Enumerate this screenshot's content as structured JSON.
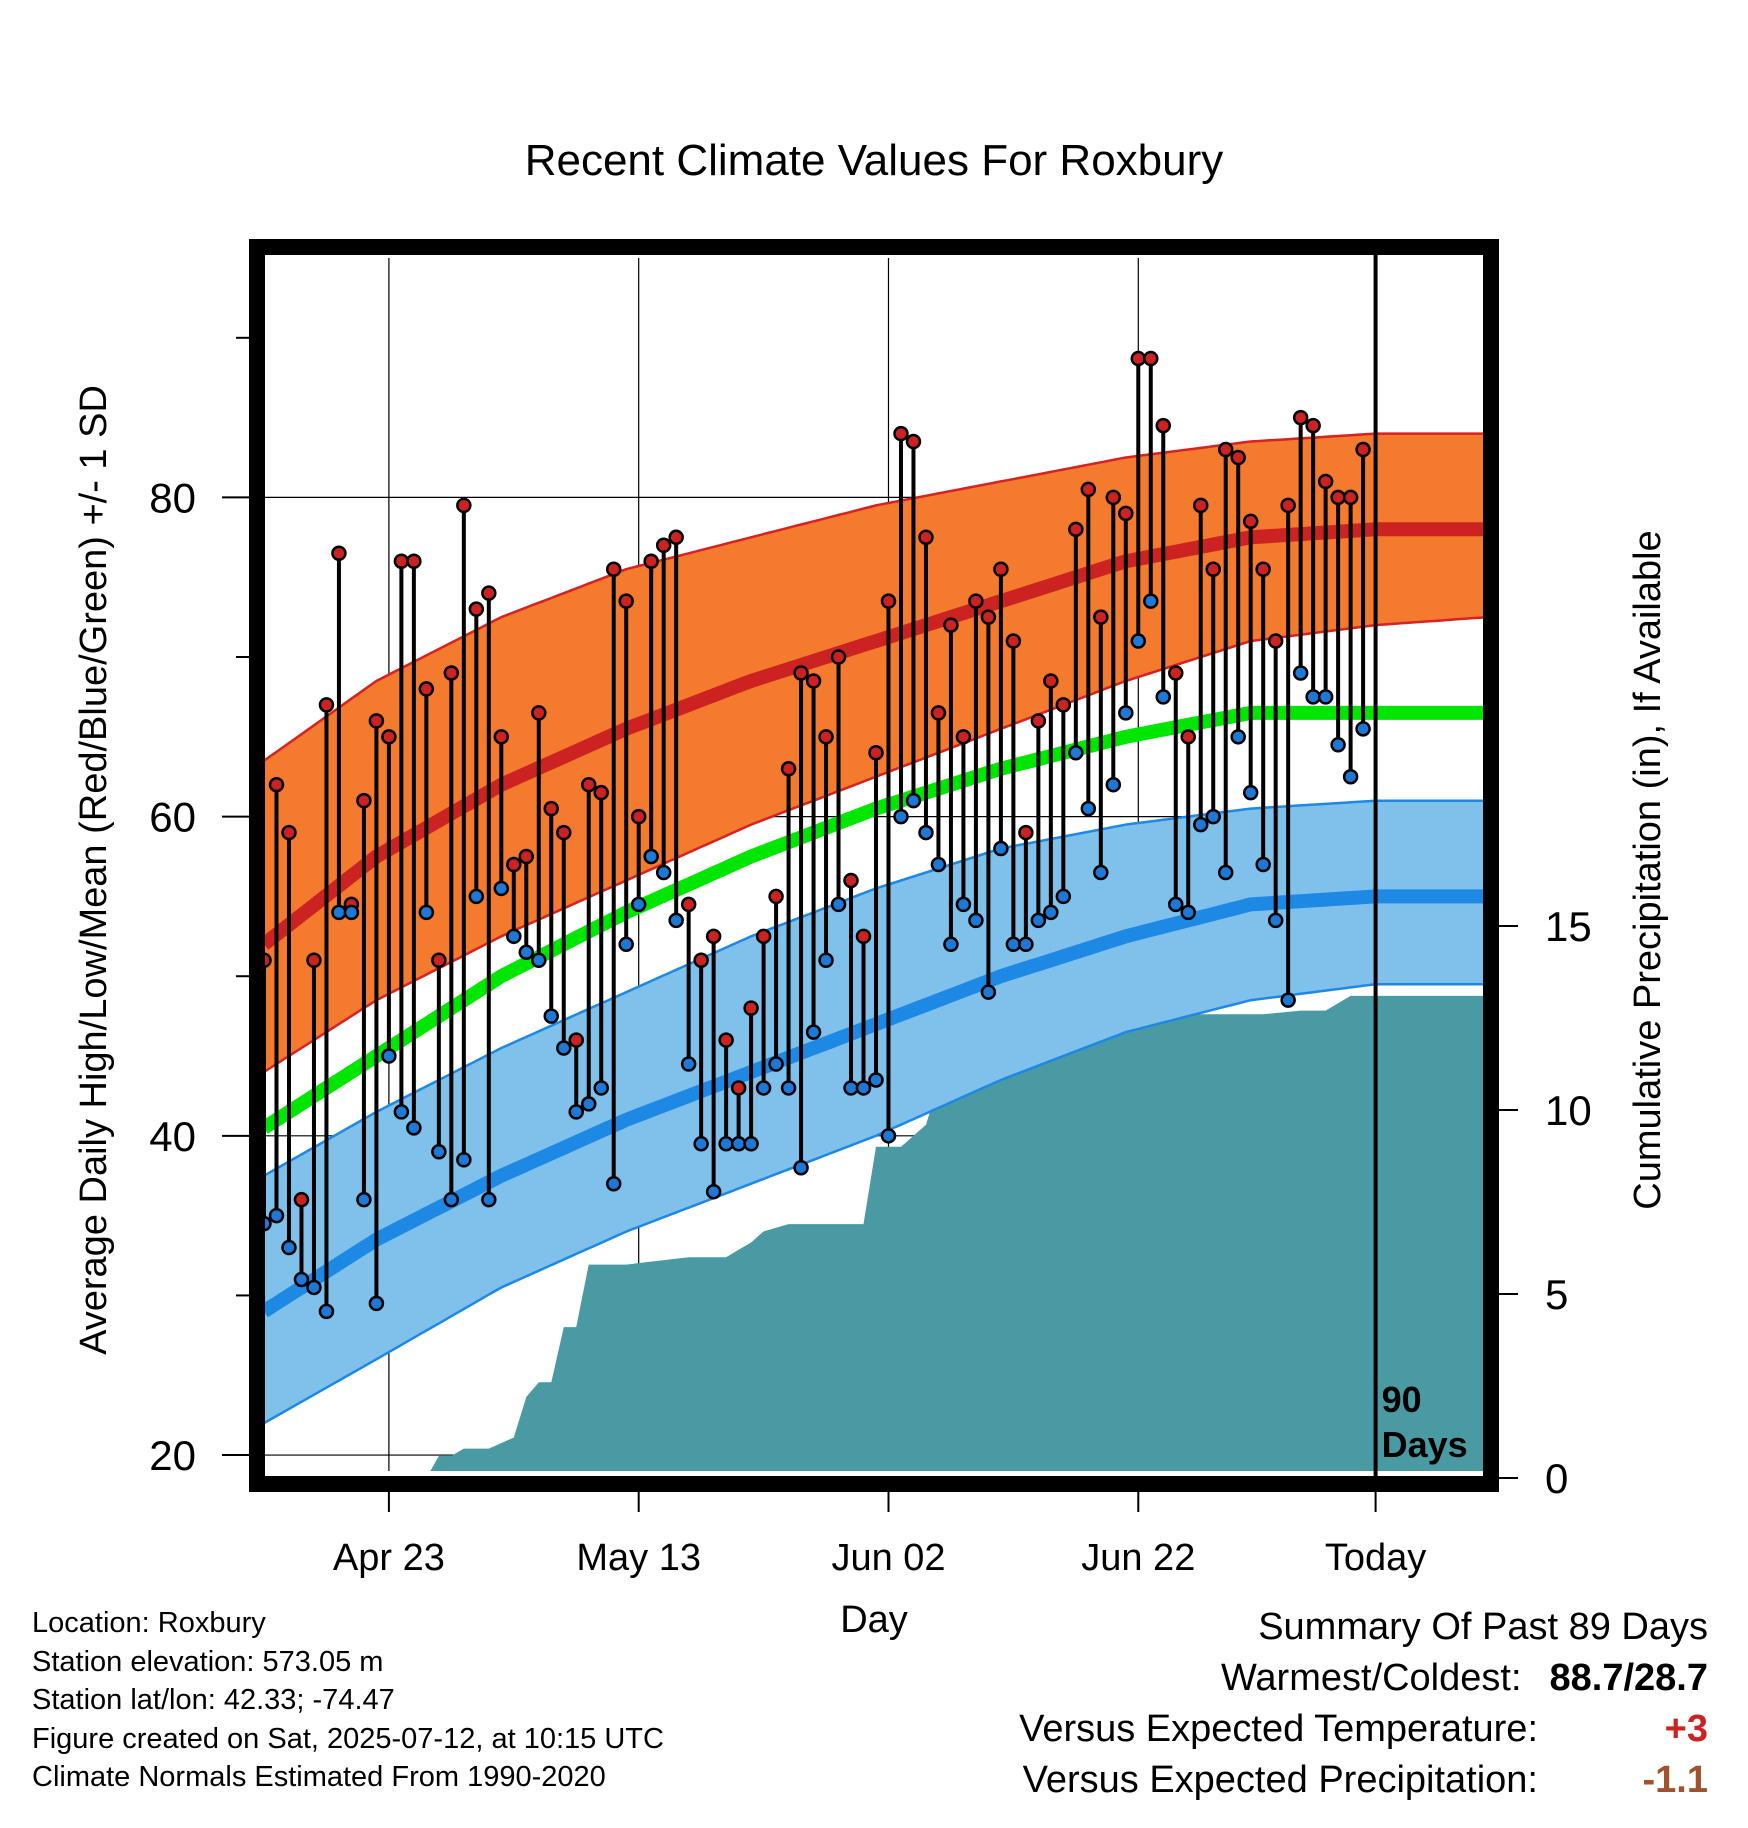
{
  "chart_data": {
    "type": "line",
    "title": "Recent Climate Values For Roxbury",
    "xlabel": "Day",
    "ylabel": "Average Daily High/Low/Mean (Red/Blue/Green) +/- 1 SD",
    "y2label": "Cumulative Precipitation (in), If Available",
    "ylim": [
      19,
      95
    ],
    "y2lim": [
      0,
      25
    ],
    "xlim": [
      -89,
      9
    ],
    "y_ticks": [
      "20",
      "40",
      "60",
      "80"
    ],
    "y2_ticks": [
      "0",
      "5",
      "10",
      "15"
    ],
    "x_ticks": [
      {
        "day": -79,
        "label": "Apr 23"
      },
      {
        "day": -59,
        "label": "May 13"
      },
      {
        "day": -39,
        "label": "Jun 02"
      },
      {
        "day": -19,
        "label": "Jun 22"
      },
      {
        "day": 0,
        "label": "Today"
      }
    ],
    "today_marker": "90\nDays",
    "grid": true,
    "colors": {
      "high_band": "#f47a2e",
      "high_edge": "#d62222",
      "high_mean": "#cc2222",
      "low_band": "#7fc1ea",
      "low_edge": "#1e88e5",
      "low_mean": "#1e88e5",
      "mean": "#00e600",
      "precip": "#4a9aa3",
      "high_marker": "#cc2222",
      "low_marker": "#1e78d6"
    },
    "normals": {
      "days": [
        -89,
        -80,
        -70,
        -60,
        -50,
        -40,
        -30,
        -20,
        -10,
        0,
        9
      ],
      "high_mean": [
        52,
        57.5,
        62,
        65.5,
        68.5,
        71,
        73.5,
        76,
        77.5,
        78,
        78
      ],
      "high_upper": [
        63.5,
        68.5,
        72.5,
        75.5,
        77.5,
        79.5,
        81,
        82.5,
        83.5,
        84,
        84
      ],
      "high_lower": [
        44,
        48.5,
        52.5,
        56,
        59.5,
        62.5,
        65.5,
        68.5,
        71,
        72,
        72.5
      ],
      "mean": [
        40.5,
        45,
        50,
        54,
        57.5,
        60.5,
        63,
        65,
        66.5,
        66.5,
        66.5
      ],
      "low_mean": [
        29,
        33.5,
        37.5,
        41,
        44,
        47,
        50,
        52.5,
        54.5,
        55,
        55
      ],
      "low_upper": [
        37.5,
        41.5,
        45.5,
        49,
        52.5,
        55.5,
        58,
        59.5,
        60.5,
        61,
        61
      ],
      "low_lower": [
        22,
        26,
        30.5,
        34,
        37,
        40,
        43.5,
        46.5,
        48.5,
        49.5,
        49.5
      ]
    },
    "daily": {
      "start_day": -89,
      "high": [
        51,
        62,
        59,
        36,
        51,
        67,
        76.5,
        54.5,
        61,
        66,
        65,
        76,
        76,
        68,
        51,
        69,
        79.5,
        73,
        74,
        65,
        57,
        57.5,
        66.5,
        60.5,
        59,
        46,
        62,
        61.5,
        75.5,
        73.5,
        60,
        76,
        77,
        77.5,
        54.5,
        51,
        52.5,
        46,
        43,
        48,
        52.5,
        55,
        63,
        69,
        68.5,
        65,
        70,
        56,
        52.5,
        64,
        73.5,
        84,
        83.5,
        77.5,
        66.5,
        72,
        65,
        73.5,
        72.5,
        75.5,
        71,
        59,
        66,
        68.5,
        67,
        78,
        80.5,
        72.5,
        80,
        79,
        88.7,
        88.7,
        84.5,
        69,
        65,
        79.5,
        75.5,
        83,
        82.5,
        78.5,
        75.5,
        71,
        79.5,
        85,
        84.5,
        81,
        80,
        80,
        83
      ],
      "low": [
        34.5,
        35,
        33,
        31,
        30.5,
        29,
        54,
        54,
        36,
        29.5,
        45,
        41.5,
        40.5,
        54,
        39,
        36,
        38.5,
        55,
        36,
        55.5,
        52.5,
        51.5,
        51,
        47.5,
        45.5,
        41.5,
        42,
        43,
        37,
        52,
        54.5,
        57.5,
        56.5,
        53.5,
        44.5,
        39.5,
        36.5,
        39.5,
        39.5,
        39.5,
        43,
        44.5,
        43,
        38,
        46.5,
        51,
        54.5,
        43,
        43,
        43.5,
        40,
        60,
        61,
        59,
        57,
        52,
        54.5,
        53.5,
        49,
        58,
        52,
        52,
        53.5,
        54,
        55,
        64,
        60.5,
        56.5,
        62,
        66.5,
        71,
        73.5,
        67.5,
        54.5,
        54,
        59.5,
        60,
        56.5,
        65,
        61.5,
        57,
        53.5,
        48.5,
        69,
        67.5,
        67.5,
        64.5,
        62.5,
        65.5
      ]
    },
    "precip": {
      "days": [
        -89,
        -76,
        -75,
        -74,
        -73,
        -71,
        -69,
        -68,
        -67,
        -66,
        -65,
        -64,
        -63,
        -62,
        -61,
        -60,
        -55,
        -52,
        -51,
        -50,
        -49,
        -47,
        -41,
        -40,
        -38,
        -36,
        -35,
        -34,
        -33,
        -30,
        -28,
        -26,
        -24,
        -22,
        -20,
        -18,
        -15,
        -12,
        -9,
        -6,
        -4,
        -3,
        -2,
        9
      ],
      "values": [
        0,
        0,
        0.6,
        0.6,
        0.8,
        0.8,
        1.1,
        2.2,
        2.6,
        2.6,
        4.1,
        4.1,
        5.8,
        5.8,
        5.8,
        5.8,
        6,
        6,
        6.2,
        6.4,
        6.7,
        6.9,
        6.9,
        9,
        9,
        9.6,
        10.7,
        11.3,
        11.5,
        11.5,
        11.7,
        11.9,
        12.1,
        12.4,
        12.4,
        12.5,
        12.6,
        12.6,
        12.6,
        12.7,
        12.7,
        12.9,
        13.1,
        13.1
      ]
    }
  },
  "info": {
    "location": "Location: Roxbury",
    "elevation": "Station elevation: 573.05 m",
    "latlon": "Station lat/lon: 42.33; -74.47",
    "created": "Figure created on Sat, 2025-07-12, at 10:15 UTC",
    "normals": "Climate Normals Estimated From 1990-2020"
  },
  "summary": {
    "title": "Summary Of Past 89 Days",
    "warm_cold_label": "Warmest/Coldest:",
    "warm_cold_value": "88.7/28.7",
    "temp_label": "Versus Expected Temperature:",
    "temp_value": "+3",
    "temp_color": "#cc2222",
    "precip_label": "Versus Expected Precipitation:",
    "precip_value": "-1.1",
    "precip_color": "#a0522d"
  }
}
